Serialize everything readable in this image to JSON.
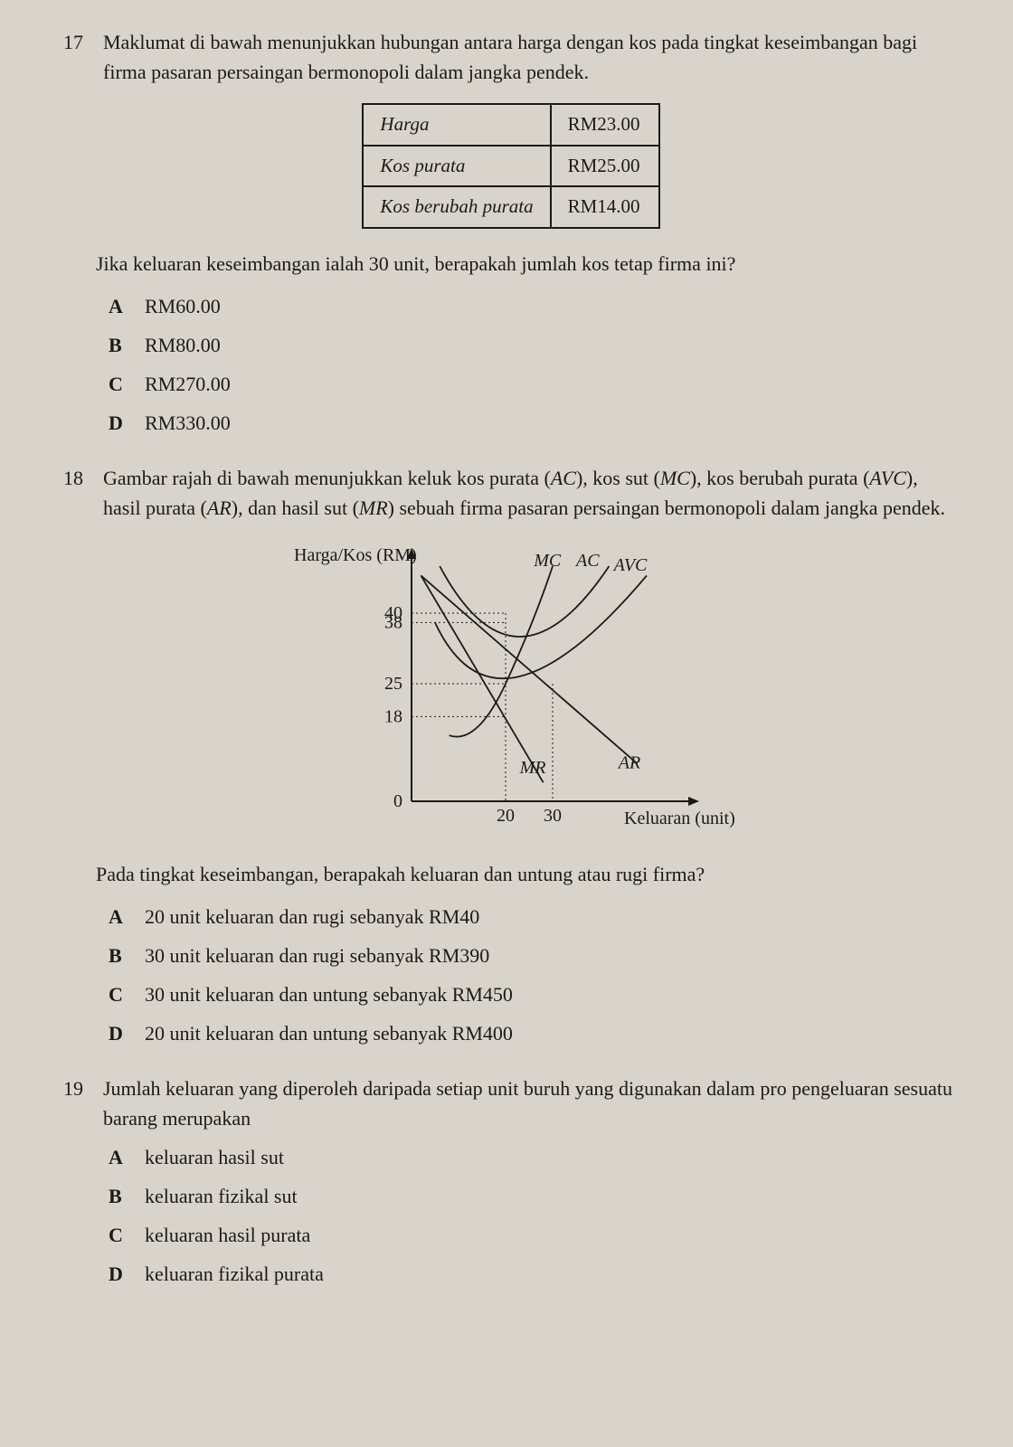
{
  "q17": {
    "num": "17",
    "text": "Maklumat di bawah menunjukkan hubungan antara harga dengan kos pada tingkat keseimbangan bagi firma pasaran persaingan bermonopoli dalam jangka pendek.",
    "table": {
      "rows": [
        [
          "Harga",
          "RM23.00"
        ],
        [
          "Kos purata",
          "RM25.00"
        ],
        [
          "Kos berubah purata",
          "RM14.00"
        ]
      ]
    },
    "sub": "Jika keluaran keseimbangan ialah 30 unit, berapakah jumlah kos tetap firma ini?",
    "opts": {
      "A": "RM60.00",
      "B": "RM80.00",
      "C": "RM270.00",
      "D": "RM330.00"
    }
  },
  "q18": {
    "num": "18",
    "text_a": "Gambar rajah di bawah menunjukkan keluk kos purata (",
    "text_ac": "AC",
    "text_b": "), kos sut (",
    "text_mc": "MC",
    "text_c": "), kos berubah purata (",
    "text_avc": "AVC",
    "text_d": "), hasil purata (",
    "text_ar": "AR",
    "text_e": "),  dan hasil  sut (",
    "text_mr": "MR",
    "text_f": ") sebuah firma pasaran persaingan bermonopoli dalam jangka pendek.",
    "chart": {
      "y_label": "Harga/Kos (RM)",
      "x_label": "Keluaran (unit)",
      "y_ticks": [
        "40",
        "38",
        "25",
        "18",
        "0"
      ],
      "x_ticks": [
        "20",
        "30"
      ],
      "curve_labels": {
        "MC": "MC",
        "AC": "AC",
        "AVC": "AVC",
        "MR": "MR",
        "AR": "AR"
      },
      "stroke": "#1a1a1a",
      "dash": "2,3",
      "font_size": 20,
      "axis_width": 2,
      "curve_width": 1.8
    },
    "sub": "Pada tingkat keseimbangan, berapakah keluaran dan untung atau rugi firma?",
    "opts": {
      "A": "20 unit keluaran dan rugi sebanyak RM40",
      "B": "30 unit keluaran dan rugi sebanyak RM390",
      "C": "30 unit keluaran dan untung sebanyak RM450",
      "D": "20 unit keluaran dan untung sebanyak RM400"
    }
  },
  "q19": {
    "num": "19",
    "text": "Jumlah keluaran yang diperoleh daripada setiap unit buruh yang digunakan dalam pro pengeluaran sesuatu barang merupakan",
    "opts": {
      "A": "keluaran hasil sut",
      "B": "keluaran fizikal sut",
      "C": "keluaran hasil purata",
      "D": "keluaran fizikal purata"
    }
  }
}
